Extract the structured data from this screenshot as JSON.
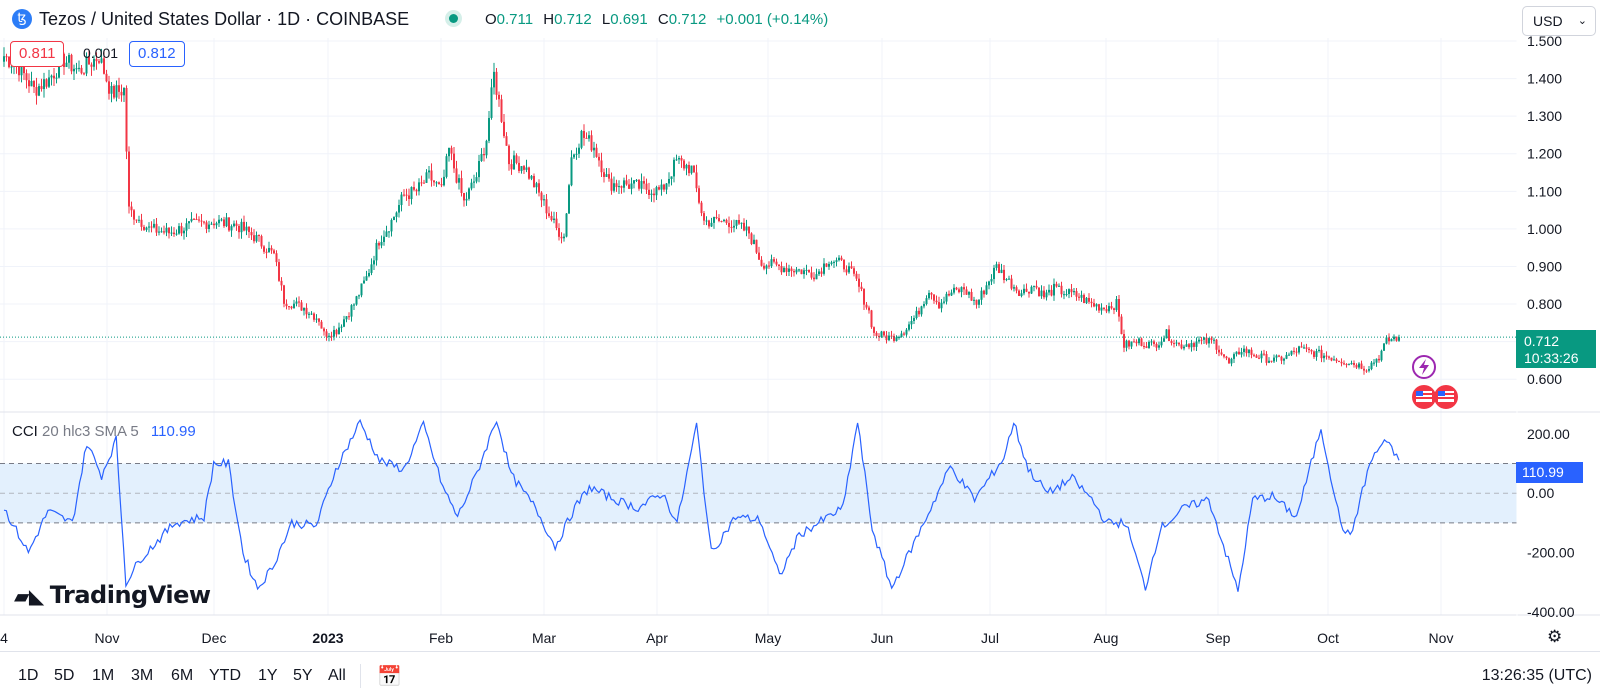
{
  "header": {
    "symbol_icon": "tezos-icon",
    "title": "Tezos / United States Dollar · 1D · COINBASE",
    "market_status_icon": "market-open-dot-icon",
    "ohlc": {
      "o_label": "O",
      "o": "0.711",
      "h_label": "H",
      "h": "0.712",
      "l_label": "L",
      "l": "0.691",
      "c_label": "C",
      "c": "0.712",
      "change": "+0.001 (+0.14%)"
    },
    "currency": "USD"
  },
  "quote": {
    "bid": "0.811",
    "spread": "0.001",
    "ask": "0.812"
  },
  "last_price": {
    "price": "0.712",
    "countdown": "10:33:26"
  },
  "colors": {
    "up": "#089981",
    "down": "#f23645",
    "cci_line": "#2962ff",
    "cci_band": "#e3f0fd"
  },
  "chart_data": [
    {
      "type": "candlestick",
      "ylim": [
        0.55,
        1.5
      ],
      "y_ticks": [
        "1.500",
        "1.400",
        "1.300",
        "1.200",
        "1.100",
        "1.000",
        "0.900",
        "0.800",
        "0.700",
        "0.600"
      ],
      "x_ticks": [
        "4",
        "Nov",
        "Dec",
        "2023",
        "Feb",
        "Mar",
        "Apr",
        "May",
        "Jun",
        "Jul",
        "Aug",
        "Sep",
        "Oct",
        "Nov"
      ],
      "series": [
        {
          "values": [
            [
              0,
              1.46
            ],
            [
              6,
              1.43
            ],
            [
              12,
              1.37
            ],
            [
              18,
              1.4
            ],
            [
              24,
              1.45
            ],
            [
              30,
              1.42
            ],
            [
              38,
              1.46
            ],
            [
              43,
              1.36
            ],
            [
              48,
              1.37
            ],
            [
              50,
              1.05
            ],
            [
              55,
              1.02
            ],
            [
              58,
              1.0
            ],
            [
              66,
              0.99
            ],
            [
              75,
              1.01
            ],
            [
              84,
              1.02
            ],
            [
              93,
              1.01
            ],
            [
              100,
              0.98
            ],
            [
              108,
              0.93
            ],
            [
              112,
              0.81
            ],
            [
              120,
              0.79
            ],
            [
              126,
              0.76
            ],
            [
              128,
              0.72
            ],
            [
              133,
              0.73
            ],
            [
              140,
              0.8
            ],
            [
              145,
              0.87
            ],
            [
              150,
              0.97
            ],
            [
              155,
              1.02
            ],
            [
              160,
              1.09
            ],
            [
              165,
              1.1
            ],
            [
              170,
              1.14
            ],
            [
              175,
              1.1
            ],
            [
              178,
              1.21
            ],
            [
              184,
              1.07
            ],
            [
              189,
              1.14
            ],
            [
              193,
              1.24
            ],
            [
              196,
              1.41
            ],
            [
              199,
              1.3
            ],
            [
              202,
              1.18
            ],
            [
              208,
              1.17
            ],
            [
              215,
              1.08
            ],
            [
              221,
              1.0
            ],
            [
              224,
              0.98
            ],
            [
              227,
              1.19
            ],
            [
              231,
              1.25
            ],
            [
              236,
              1.22
            ],
            [
              242,
              1.12
            ],
            [
              248,
              1.12
            ],
            [
              255,
              1.11
            ],
            [
              263,
              1.1
            ],
            [
              269,
              1.18
            ],
            [
              275,
              1.16
            ],
            [
              280,
              1.02
            ],
            [
              285,
              1.02
            ],
            [
              290,
              1.02
            ],
            [
              298,
              0.99
            ],
            [
              303,
              0.91
            ],
            [
              310,
              0.9
            ],
            [
              318,
              0.89
            ],
            [
              325,
              0.88
            ],
            [
              330,
              0.92
            ],
            [
              337,
              0.9
            ],
            [
              341,
              0.86
            ],
            [
              346,
              0.78
            ],
            [
              348,
              0.72
            ],
            [
              355,
              0.71
            ],
            [
              360,
              0.73
            ],
            [
              365,
              0.77
            ],
            [
              370,
              0.84
            ],
            [
              374,
              0.8
            ],
            [
              379,
              0.83
            ],
            [
              384,
              0.84
            ],
            [
              389,
              0.8
            ],
            [
              393,
              0.85
            ],
            [
              397,
              0.9
            ],
            [
              402,
              0.86
            ],
            [
              407,
              0.83
            ],
            [
              412,
              0.85
            ],
            [
              416,
              0.82
            ],
            [
              420,
              0.84
            ],
            [
              425,
              0.83
            ],
            [
              430,
              0.82
            ],
            [
              435,
              0.8
            ],
            [
              440,
              0.79
            ],
            [
              445,
              0.8
            ],
            [
              448,
              0.69
            ],
            [
              454,
              0.7
            ],
            [
              460,
              0.69
            ],
            [
              465,
              0.72
            ],
            [
              470,
              0.69
            ],
            [
              478,
              0.7
            ],
            [
              484,
              0.7
            ],
            [
              490,
              0.64
            ],
            [
              495,
              0.68
            ],
            [
              502,
              0.66
            ],
            [
              508,
              0.65
            ],
            [
              513,
              0.66
            ],
            [
              518,
              0.68
            ],
            [
              524,
              0.67
            ],
            [
              530,
              0.66
            ],
            [
              535,
              0.65
            ],
            [
              541,
              0.64
            ],
            [
              545,
              0.63
            ],
            [
              550,
              0.66
            ],
            [
              553,
              0.7
            ],
            [
              556,
              0.71
            ],
            [
              558,
              0.712
            ]
          ]
        }
      ]
    },
    {
      "type": "line",
      "title": "CCI",
      "legend": "CCI 20 hlc3 SMA 5",
      "current_value": "110.99",
      "ylim": [
        -400,
        250
      ],
      "y_ticks": [
        "200.00",
        "0.00",
        "-200.00",
        "-400.00"
      ],
      "band": [
        -100,
        100
      ],
      "series": [
        {
          "values": [
            [
              0,
              -50
            ],
            [
              10,
              -200
            ],
            [
              18,
              -60
            ],
            [
              28,
              -100
            ],
            [
              34,
              170
            ],
            [
              40,
              60
            ],
            [
              46,
              180
            ],
            [
              50,
              -300
            ],
            [
              56,
              -220
            ],
            [
              70,
              -100
            ],
            [
              82,
              -80
            ],
            [
              86,
              100
            ],
            [
              92,
              100
            ],
            [
              98,
              -200
            ],
            [
              104,
              -320
            ],
            [
              110,
              -250
            ],
            [
              118,
              -100
            ],
            [
              128,
              -110
            ],
            [
              136,
              80
            ],
            [
              146,
              240
            ],
            [
              154,
              110
            ],
            [
              164,
              80
            ],
            [
              172,
              230
            ],
            [
              180,
              20
            ],
            [
              186,
              -80
            ],
            [
              194,
              70
            ],
            [
              202,
              250
            ],
            [
              208,
              60
            ],
            [
              218,
              -50
            ],
            [
              226,
              -180
            ],
            [
              234,
              -50
            ],
            [
              240,
              20
            ],
            [
              250,
              -20
            ],
            [
              260,
              -50
            ],
            [
              270,
              0
            ],
            [
              276,
              -100
            ],
            [
              284,
              230
            ],
            [
              290,
              -200
            ],
            [
              300,
              -80
            ],
            [
              310,
              -90
            ],
            [
              318,
              -280
            ],
            [
              326,
              -140
            ],
            [
              334,
              -100
            ],
            [
              344,
              -50
            ],
            [
              350,
              240
            ],
            [
              356,
              -120
            ],
            [
              364,
              -320
            ],
            [
              376,
              -120
            ],
            [
              388,
              90
            ],
            [
              398,
              -20
            ],
            [
              410,
              120
            ],
            [
              414,
              240
            ],
            [
              420,
              80
            ],
            [
              428,
              0
            ],
            [
              438,
              50
            ],
            [
              446,
              -20
            ],
            [
              452,
              -100
            ],
            [
              460,
              -100
            ],
            [
              468,
              -320
            ],
            [
              474,
              -120
            ],
            [
              484,
              -50
            ],
            [
              494,
              -20
            ],
            [
              506,
              -330
            ],
            [
              512,
              -20
            ],
            [
              520,
              -10
            ],
            [
              530,
              -80
            ],
            [
              540,
              220
            ],
            [
              548,
              -100
            ],
            [
              552,
              -150
            ],
            [
              560,
              100
            ],
            [
              566,
              180
            ],
            [
              572,
              111
            ]
          ]
        }
      ]
    }
  ],
  "range_buttons": [
    "1D",
    "5D",
    "1M",
    "3M",
    "6M",
    "YTD",
    "1Y",
    "5Y",
    "All"
  ],
  "footer": {
    "clock": "13:26:35 (UTC)",
    "brand": "TradingView",
    "date_range_icon": "calendar-range-icon",
    "settings_icon": "gear-icon"
  },
  "events": {
    "lightning_icon": "lightning-event-icon",
    "flag_icon": "us-flag-event-icon"
  }
}
